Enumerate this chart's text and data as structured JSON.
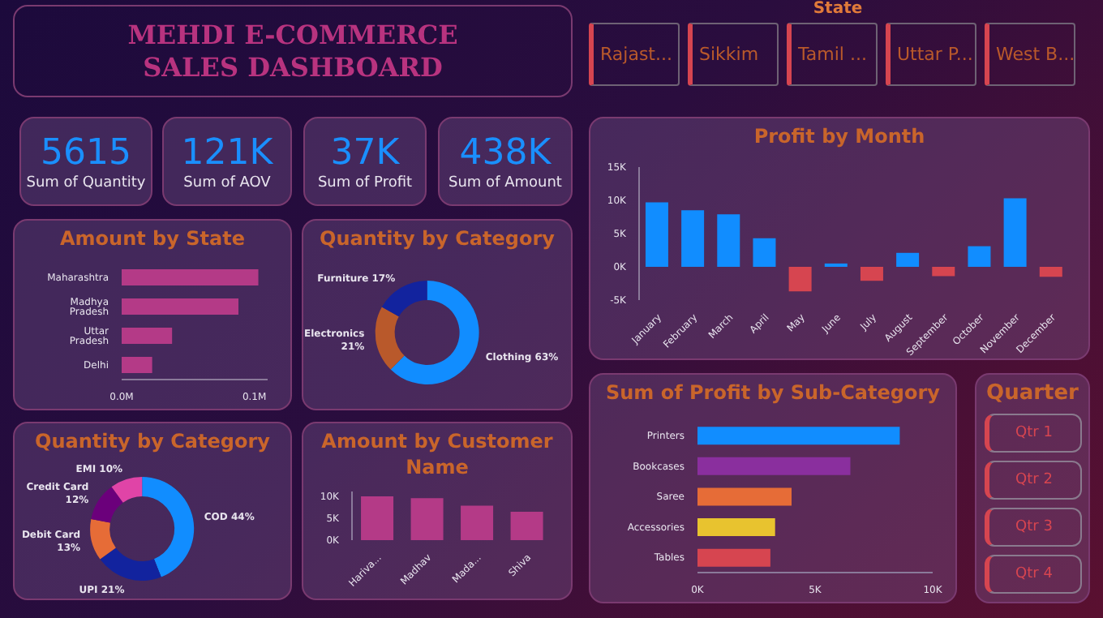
{
  "chart_data": [
    {
      "type": "other",
      "title": "MEHDI E-COMMERCE SALES DASHBOARD"
    },
    {
      "type": "other",
      "title": "Sum of Quantity",
      "annotations": [
        "5615"
      ]
    },
    {
      "type": "other",
      "title": "Sum of AOV",
      "annotations": [
        "121K"
      ]
    },
    {
      "type": "other",
      "title": "Sum of Profit",
      "annotations": [
        "37K"
      ]
    },
    {
      "type": "other",
      "title": "Sum of Amount",
      "annotations": [
        "438K"
      ]
    },
    {
      "type": "other",
      "title": "State",
      "annotations": [
        "Rajast...",
        "Sikkim",
        "Tamil ...",
        "Uttar P...",
        "West B..."
      ]
    },
    {
      "type": "bar",
      "title": "Amount by State",
      "orientation": "horizontal",
      "categories": [
        "Maharashtra",
        "Madhya Pradesh",
        "Uttar Pradesh",
        "Delhi"
      ],
      "values": [
        0.103,
        0.088,
        0.038,
        0.023
      ],
      "color": "#b43a87",
      "xlim": [
        0,
        0.11
      ],
      "xticks": [
        {
          "value": 0,
          "label": "0.0M"
        },
        {
          "value": 0.1,
          "label": "0.1M"
        }
      ]
    },
    {
      "type": "donut",
      "title": "Quantity by Category",
      "categories": [
        "Clothing",
        "Electronics",
        "Furniture"
      ],
      "values": [
        63,
        21,
        17
      ],
      "value_labels": [
        "63%",
        "21%",
        "17%"
      ],
      "colors": [
        "#118dff",
        "#b9592b",
        "#12239e"
      ]
    },
    {
      "type": "bar",
      "title": "Profit by Month",
      "categories": [
        "January",
        "February",
        "March",
        "April",
        "May",
        "June",
        "July",
        "August",
        "September",
        "October",
        "November",
        "December"
      ],
      "values": [
        9700,
        8500,
        7900,
        4300,
        -3700,
        500,
        -2100,
        2100,
        -1400,
        3100,
        10300,
        -1500
      ],
      "colors": [
        "#118dff",
        "#118dff",
        "#118dff",
        "#118dff",
        "#d64550",
        "#118dff",
        "#d64550",
        "#118dff",
        "#d64550",
        "#118dff",
        "#118dff",
        "#d64550"
      ],
      "ylim": [
        -5000,
        15000
      ],
      "yticks": [
        {
          "value": -5000,
          "label": "-5K"
        },
        {
          "value": 0,
          "label": "0K"
        },
        {
          "value": 5000,
          "label": "5K"
        },
        {
          "value": 10000,
          "label": "10K"
        },
        {
          "value": 15000,
          "label": "15K"
        }
      ]
    },
    {
      "type": "donut",
      "title": "Quantity by Category",
      "categories": [
        "COD",
        "UPI",
        "Debit Card",
        "Credit Card",
        "EMI"
      ],
      "values": [
        44,
        21,
        13,
        12,
        10
      ],
      "value_labels": [
        "44%",
        "21%",
        "13%",
        "12%",
        "10%"
      ],
      "colors": [
        "#118dff",
        "#12239e",
        "#e66c37",
        "#6b007b",
        "#e044a7"
      ]
    },
    {
      "type": "bar",
      "title": "Amount by Customer Name",
      "categories": [
        "Hariva...",
        "Madhav",
        "Mada...",
        "Shiva"
      ],
      "values": [
        9900,
        9500,
        7800,
        6400
      ],
      "color": "#b43a87",
      "ylim": [
        0,
        11000
      ],
      "yticks": [
        {
          "value": 0,
          "label": "0K"
        },
        {
          "value": 5000,
          "label": "5K"
        },
        {
          "value": 10000,
          "label": "10K"
        }
      ]
    },
    {
      "type": "bar",
      "title": "Sum of Profit by Sub-Category",
      "orientation": "horizontal",
      "categories": [
        "Printers",
        "Bookcases",
        "Saree",
        "Accessories",
        "Tables"
      ],
      "values": [
        8600,
        6500,
        4000,
        3300,
        3100
      ],
      "colors": [
        "#118dff",
        "#8a2f9e",
        "#e66c37",
        "#e8c32f",
        "#d64550"
      ],
      "xlim": [
        0,
        10000
      ],
      "xticks": [
        {
          "value": 0,
          "label": "0K"
        },
        {
          "value": 5000,
          "label": "5K"
        },
        {
          "value": 10000,
          "label": "10K"
        }
      ]
    },
    {
      "type": "other",
      "title": "Quarter",
      "annotations": [
        "Qtr 1",
        "Qtr 2",
        "Qtr 3",
        "Qtr 4"
      ]
    }
  ]
}
